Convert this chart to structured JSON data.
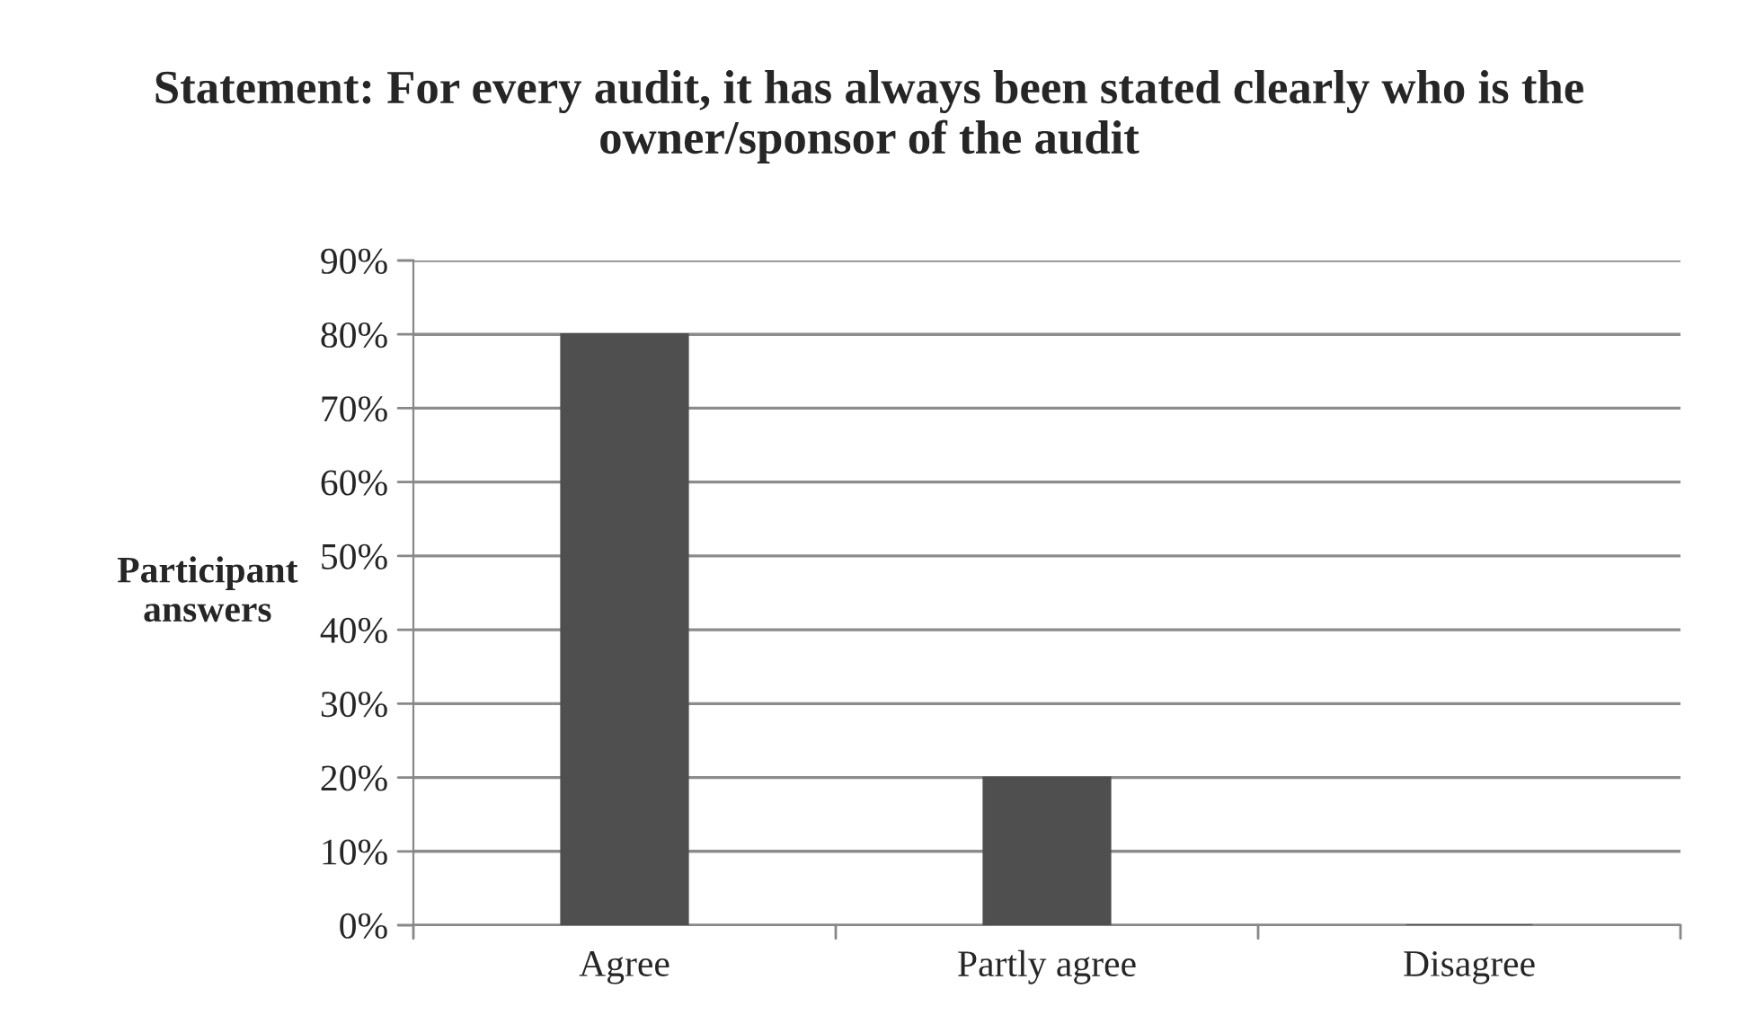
{
  "chart_data": {
    "type": "bar",
    "title": "Statement: For every audit, it has always been stated clearly who is the owner/sponsor of the audit",
    "ylabel": "Participant answers",
    "categories": [
      "Agree",
      "Partly agree",
      "Disagree"
    ],
    "values": [
      80,
      20,
      0
    ],
    "color": "#4f4f4f",
    "ylim": [
      0,
      90
    ],
    "yticks": [
      {
        "value": 0,
        "label": "0%"
      },
      {
        "value": 10,
        "label": "10%"
      },
      {
        "value": 20,
        "label": "20%"
      },
      {
        "value": 30,
        "label": "30%"
      },
      {
        "value": 40,
        "label": "40%"
      },
      {
        "value": 50,
        "label": "50%"
      },
      {
        "value": 60,
        "label": "60%"
      },
      {
        "value": 70,
        "label": "70%"
      },
      {
        "value": 80,
        "label": "80%"
      },
      {
        "value": 90,
        "label": "90%"
      }
    ],
    "grid": "y",
    "legend": false
  }
}
